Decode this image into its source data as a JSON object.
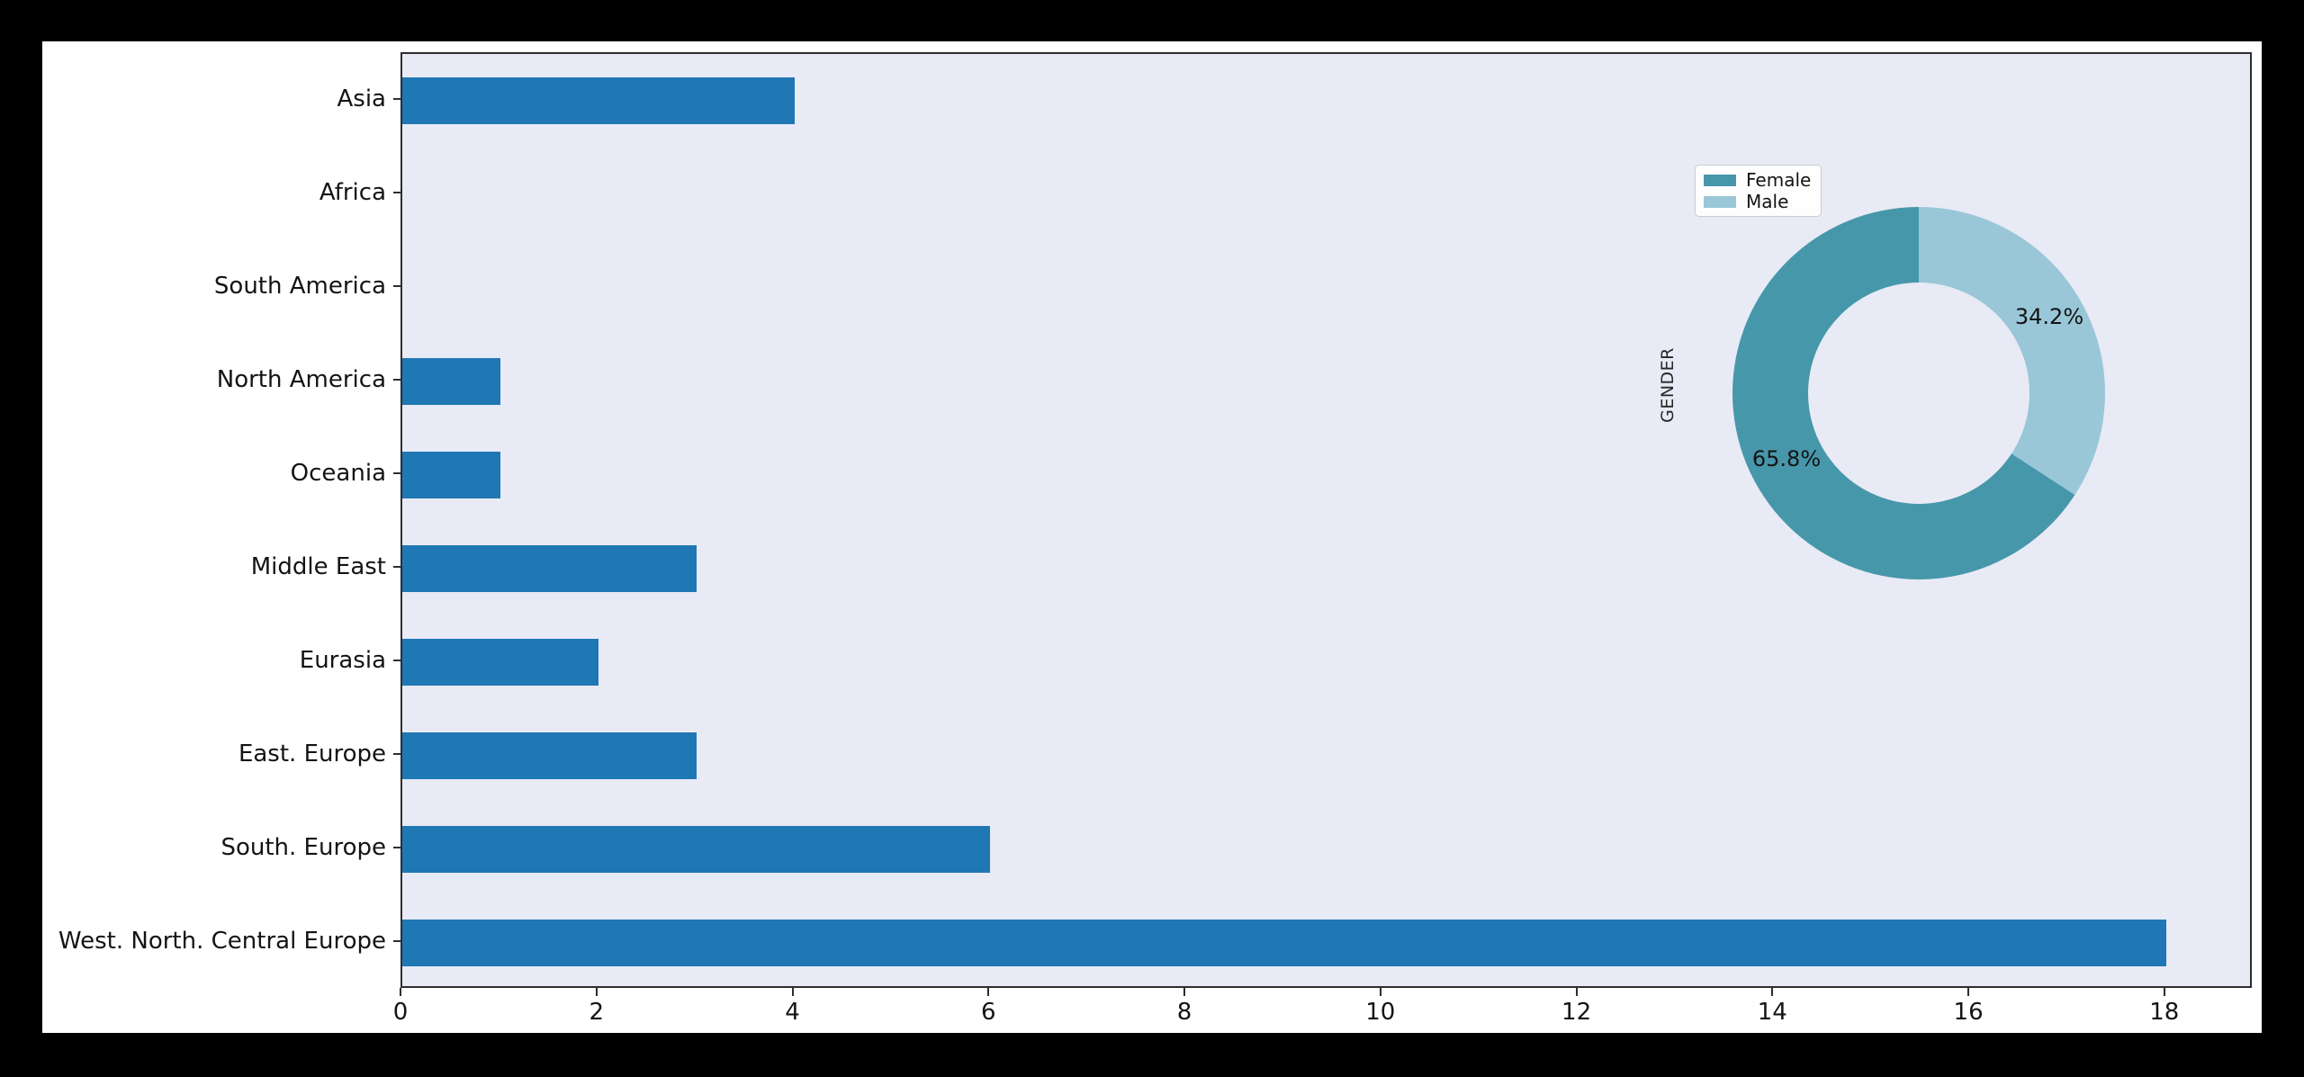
{
  "colors": {
    "page_background": "#000000",
    "figure_background": "#ffffff",
    "plot_background": "#e8eaf5",
    "bar_color": "#1f77b4",
    "female_color": "#4797ab",
    "male_color": "#99c7d8",
    "axis_color": "#2e2e2e",
    "text_color": "#141414"
  },
  "chart_data": [
    {
      "type": "bar",
      "orientation": "horizontal",
      "title": "",
      "xlabel": "",
      "ylabel": "",
      "categories": [
        "Asia",
        "Africa",
        "South America",
        "North America",
        "Oceania",
        "Middle East",
        "Eurasia",
        "East. Europe",
        "South. Europe",
        "West. North. Central Europe"
      ],
      "values": [
        4,
        0,
        0,
        1,
        1,
        3,
        2,
        3,
        6,
        18
      ],
      "x_ticks": [
        0,
        2,
        4,
        6,
        8,
        10,
        12,
        14,
        16,
        18
      ],
      "xlim": [
        0,
        18.9
      ],
      "grid": false,
      "bar_color": "#1f77b4",
      "plot_background": "#e8eaf5",
      "bar_rel_height": 0.5
    },
    {
      "type": "pie",
      "donut": true,
      "ylabel": "GENDER",
      "start_angle": "top",
      "direction": "clockwise",
      "clockwise_draw_order": [
        1,
        0
      ],
      "inner_radius_ratio": 0.595,
      "legend_position": "upper left",
      "slices": [
        {
          "label": "Female",
          "value": 65.8,
          "pct_label": "65.8%",
          "color": "#4797ab"
        },
        {
          "label": "Male",
          "value": 34.2,
          "pct_label": "34.2%",
          "color": "#99c7d8"
        }
      ]
    }
  ]
}
